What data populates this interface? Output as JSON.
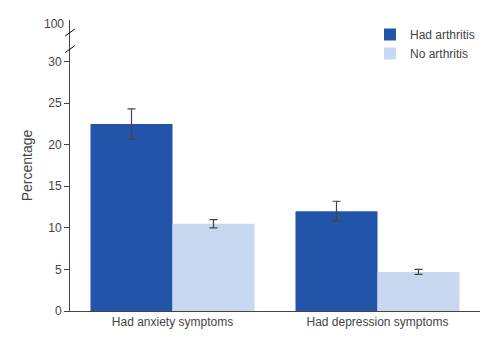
{
  "chart_data": {
    "type": "bar",
    "categories": [
      "Had anxiety symptoms",
      "Had depression symptoms"
    ],
    "series": [
      {
        "name": "Had arthritis",
        "color": "#2255AA",
        "values": [
          22.5,
          12.0
        ],
        "errors": [
          1.8,
          1.2
        ]
      },
      {
        "name": "No arthritis",
        "color": "#C8D8F0",
        "values": [
          10.5,
          4.7
        ],
        "errors": [
          0.5,
          0.3
        ]
      }
    ],
    "ylabel": "Percentage",
    "ylim": [
      0,
      35
    ],
    "yticks": [
      0,
      5,
      10,
      15,
      20,
      25,
      30
    ],
    "annotations": [
      {
        "text": "100"
      }
    ],
    "grid": false,
    "legend": "upper right"
  }
}
